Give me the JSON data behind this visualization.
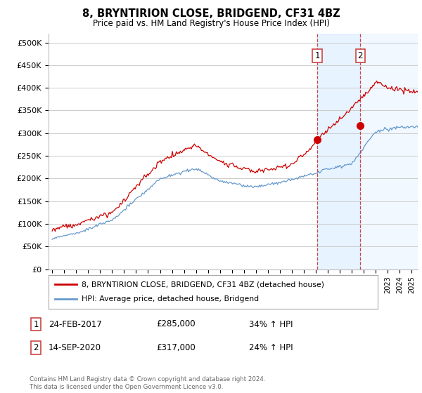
{
  "title": "8, BRYNTIRION CLOSE, BRIDGEND, CF31 4BZ",
  "subtitle": "Price paid vs. HM Land Registry's House Price Index (HPI)",
  "ylabel_ticks": [
    "£0",
    "£50K",
    "£100K",
    "£150K",
    "£200K",
    "£250K",
    "£300K",
    "£350K",
    "£400K",
    "£450K",
    "£500K"
  ],
  "ytick_values": [
    0,
    50000,
    100000,
    150000,
    200000,
    250000,
    300000,
    350000,
    400000,
    450000,
    500000
  ],
  "ylim": [
    0,
    520000
  ],
  "xlim_start": 1994.7,
  "xlim_end": 2025.5,
  "transaction1": {
    "date_num": 2017.12,
    "price": 285000,
    "label": "1",
    "date_str": "24-FEB-2017",
    "pct": "34% ↑ HPI"
  },
  "transaction2": {
    "date_num": 2020.71,
    "price": 317000,
    "label": "2",
    "date_str": "14-SEP-2020",
    "pct": "24% ↑ HPI"
  },
  "legend_property": "8, BRYNTIRION CLOSE, BRIDGEND, CF31 4BZ (detached house)",
  "legend_hpi": "HPI: Average price, detached house, Bridgend",
  "property_color": "#cc0000",
  "hpi_color": "#6699cc",
  "shade_color": "#ddeeff",
  "vline_color": "#cc4444",
  "footnote": "Contains HM Land Registry data © Crown copyright and database right 2024.\nThis data is licensed under the Open Government Licence v3.0.",
  "background_color": "#ffffff",
  "grid_color": "#cccccc"
}
